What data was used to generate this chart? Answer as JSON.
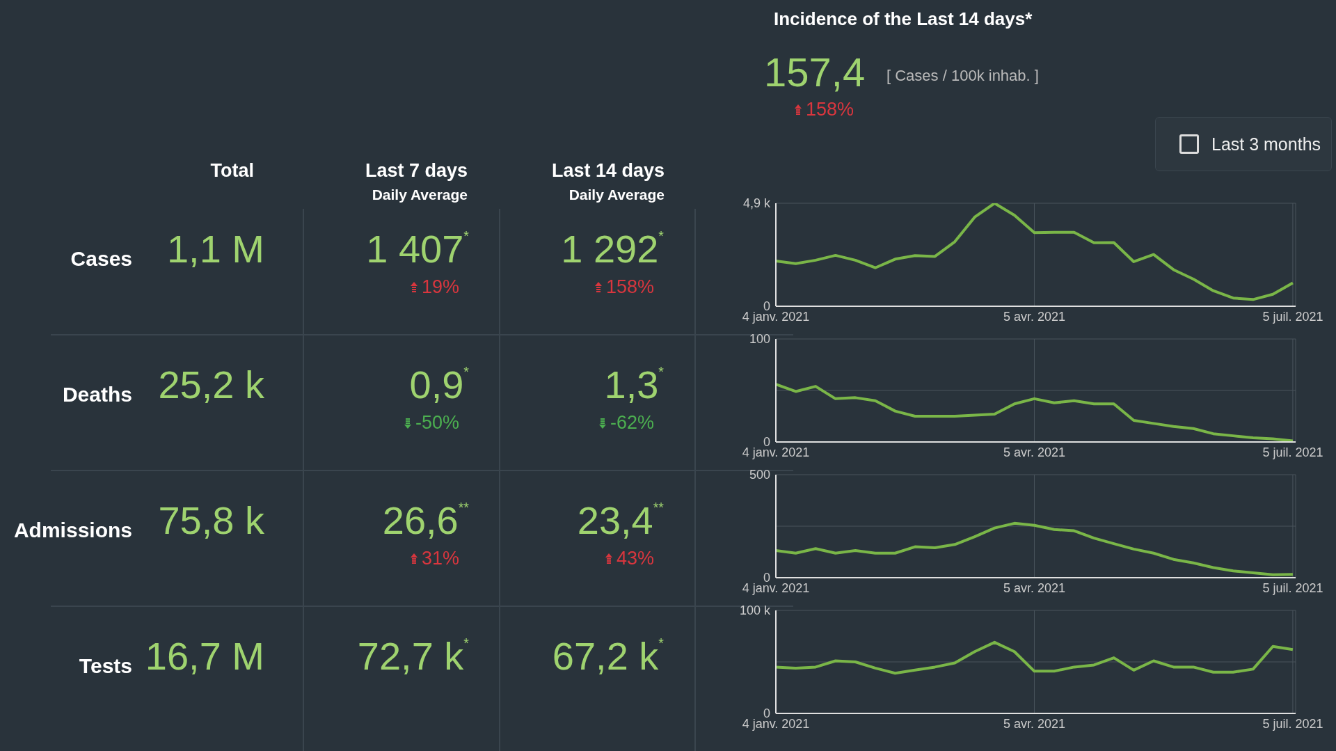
{
  "chart_data": [
    {
      "type": "other",
      "title": "Incidence of the Last 14 days*",
      "annotations": [
        "157,4",
        "[ Cases / 100k inhab. ]",
        "158%",
        "Last 3 months"
      ]
    },
    {
      "type": "other",
      "annotations": [
        "Total",
        "Last 7 days",
        "Daily Average",
        "Last 14 days",
        "Daily Average",
        "Cases",
        "1,1 M",
        "1 407$^{*}$",
        "1 292$^{*}$",
        "19%",
        "158%",
        "Deaths",
        "25,2 k",
        "0,9$^{*}$",
        "1,3$^{*}$",
        "-50%",
        "-62%",
        "Admissions",
        "75,8 k",
        "26,6$^{**}$",
        "23,4$^{**}$",
        "31%",
        "43%",
        "Tests",
        "16,7 M",
        "72,7 k$^{*}$",
        "67,2 k$^{*}$"
      ]
    },
    {
      "type": "line",
      "x": [
        "2021-01-04",
        "2021-01-11",
        "2021-01-18",
        "2021-01-25",
        "2021-02-01",
        "2021-02-08",
        "2021-02-15",
        "2021-02-22",
        "2021-03-01",
        "2021-03-08",
        "2021-03-15",
        "2021-03-22",
        "2021-03-29",
        "2021-04-05",
        "2021-04-12",
        "2021-04-19",
        "2021-04-26",
        "2021-05-03",
        "2021-05-10",
        "2021-05-17",
        "2021-05-24",
        "2021-05-31",
        "2021-06-07",
        "2021-06-14",
        "2021-06-21",
        "2021-06-28",
        "2021-07-05"
      ],
      "series": [
        {
          "color": "#7ab648",
          "values": [
            2150,
            2030,
            2190,
            2420,
            2190,
            1830,
            2240,
            2410,
            2370,
            3070,
            4240,
            4900,
            4330,
            3500,
            3520,
            3520,
            3020,
            3030,
            2120,
            2460,
            1740,
            1290,
            740,
            390,
            320,
            570,
            1110
          ]
        }
      ],
      "xlim": [
        "2021-01-04",
        "2021-07-06"
      ],
      "xticks": [
        {
          "value": "2021-01-04",
          "label": "4 janv. 2021"
        },
        {
          "value": "2021-04-05",
          "label": "5 avr. 2021"
        },
        {
          "value": "2021-07-05",
          "label": "5 juil. 2021"
        }
      ],
      "ylim": [
        0,
        4900
      ],
      "yticks": [
        0,
        {
          "value": 4900,
          "label": "4,9 k"
        }
      ],
      "grid": true
    },
    {
      "type": "line",
      "x": [
        "2021-01-04",
        "2021-01-11",
        "2021-01-18",
        "2021-01-25",
        "2021-02-01",
        "2021-02-08",
        "2021-02-15",
        "2021-02-22",
        "2021-03-01",
        "2021-03-08",
        "2021-03-15",
        "2021-03-22",
        "2021-03-29",
        "2021-04-05",
        "2021-04-12",
        "2021-04-19",
        "2021-04-26",
        "2021-05-03",
        "2021-05-10",
        "2021-05-17",
        "2021-05-24",
        "2021-05-31",
        "2021-06-07",
        "2021-06-14",
        "2021-06-21",
        "2021-06-28",
        "2021-07-05"
      ],
      "series": [
        {
          "color": "#7ab648",
          "values": [
            56,
            49,
            54,
            42,
            43,
            40,
            30,
            25,
            25,
            25,
            26,
            27,
            37,
            42,
            38,
            40,
            37,
            37,
            21,
            18,
            15,
            13,
            8,
            6,
            4,
            3,
            1
          ]
        }
      ],
      "xlim": [
        "2021-01-04",
        "2021-07-06"
      ],
      "xticks": [
        {
          "value": "2021-01-04",
          "label": "4 janv. 2021"
        },
        {
          "value": "2021-04-05",
          "label": "5 avr. 2021"
        },
        {
          "value": "2021-07-05",
          "label": "5 juil. 2021"
        }
      ],
      "ylim": [
        0,
        100
      ],
      "yticks": [
        0,
        {
          "value": 50,
          "label": null
        },
        100
      ],
      "grid": true
    },
    {
      "type": "line",
      "x": [
        "2021-01-04",
        "2021-01-11",
        "2021-01-18",
        "2021-01-25",
        "2021-02-01",
        "2021-02-08",
        "2021-02-15",
        "2021-02-22",
        "2021-03-01",
        "2021-03-08",
        "2021-03-15",
        "2021-03-22",
        "2021-03-29",
        "2021-04-05",
        "2021-04-12",
        "2021-04-19",
        "2021-04-26",
        "2021-05-03",
        "2021-05-10",
        "2021-05-17",
        "2021-05-24",
        "2021-05-31",
        "2021-06-07",
        "2021-06-14",
        "2021-06-21",
        "2021-06-28",
        "2021-07-05"
      ],
      "series": [
        {
          "color": "#7ab648",
          "values": [
            132,
            119,
            141,
            119,
            132,
            119,
            119,
            150,
            145,
            161,
            199,
            241,
            264,
            254,
            234,
            228,
            192,
            165,
            139,
            119,
            89,
            72,
            49,
            33,
            24,
            14,
            16
          ]
        }
      ],
      "xlim": [
        "2021-01-04",
        "2021-07-06"
      ],
      "xticks": [
        {
          "value": "2021-01-04",
          "label": "4 janv. 2021"
        },
        {
          "value": "2021-04-05",
          "label": "5 avr. 2021"
        },
        {
          "value": "2021-07-05",
          "label": "5 juil. 2021"
        }
      ],
      "ylim": [
        0,
        500
      ],
      "yticks": [
        0,
        {
          "value": 250,
          "label": null
        },
        500
      ],
      "grid": true
    },
    {
      "type": "line",
      "x": [
        "2021-01-04",
        "2021-01-11",
        "2021-01-18",
        "2021-01-25",
        "2021-02-01",
        "2021-02-08",
        "2021-02-15",
        "2021-02-22",
        "2021-03-01",
        "2021-03-08",
        "2021-03-15",
        "2021-03-22",
        "2021-03-29",
        "2021-04-05",
        "2021-04-12",
        "2021-04-19",
        "2021-04-26",
        "2021-05-03",
        "2021-05-10",
        "2021-05-17",
        "2021-05-24",
        "2021-05-31",
        "2021-06-07",
        "2021-06-14",
        "2021-06-21",
        "2021-06-28",
        "2021-07-05"
      ],
      "series": [
        {
          "color": "#7ab648",
          "values": [
            45000,
            44000,
            45000,
            51000,
            50000,
            44000,
            39000,
            42000,
            45000,
            49000,
            60000,
            69000,
            60000,
            41000,
            41000,
            45000,
            47000,
            54000,
            42000,
            51000,
            45000,
            45000,
            40000,
            40000,
            43000,
            65000,
            62000
          ]
        }
      ],
      "xlim": [
        "2021-01-04",
        "2021-07-06"
      ],
      "xticks": [
        {
          "value": "2021-01-04",
          "label": "4 janv. 2021"
        },
        {
          "value": "2021-04-05",
          "label": "5 avr. 2021"
        },
        {
          "value": "2021-07-05",
          "label": "5 juil. 2021"
        }
      ],
      "ylim": [
        0,
        100000
      ],
      "yticks": [
        {
          "value": 0,
          "label": "0"
        },
        {
          "value": 50000,
          "label": null
        },
        {
          "value": 100000,
          "label": "100 k"
        }
      ],
      "grid": true
    }
  ]
}
